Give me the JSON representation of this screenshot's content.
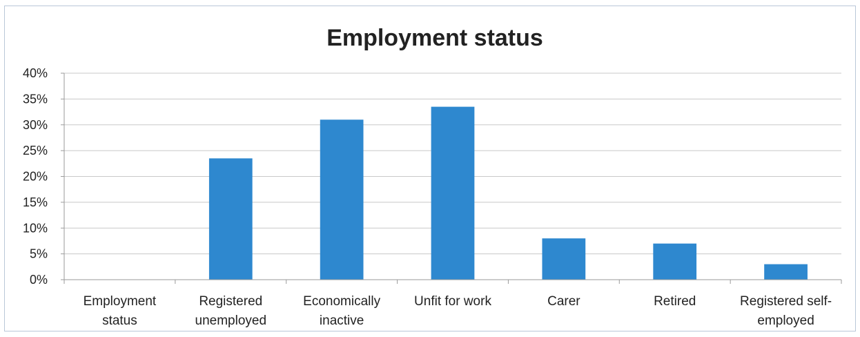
{
  "chart_data": {
    "type": "bar",
    "title": "Employment status",
    "xlabel": "",
    "ylabel": "",
    "categories": [
      [
        "Employment",
        "status"
      ],
      [
        "Registered",
        "unemployed"
      ],
      [
        "Economically",
        "inactive"
      ],
      [
        "Unfit for work"
      ],
      [
        "Carer"
      ],
      [
        "Retired"
      ],
      [
        "Registered self-",
        "employed"
      ]
    ],
    "values": [
      0,
      23.5,
      31,
      33.5,
      8,
      7,
      3
    ],
    "ylim": [
      0,
      40
    ],
    "yticks": [
      "0%",
      "5%",
      "10%",
      "15%",
      "20%",
      "25%",
      "30%",
      "35%",
      "40%"
    ],
    "grid": true,
    "legend": "none",
    "bar_color": "#2e88cf",
    "grid_color": "#c8c8c8"
  }
}
